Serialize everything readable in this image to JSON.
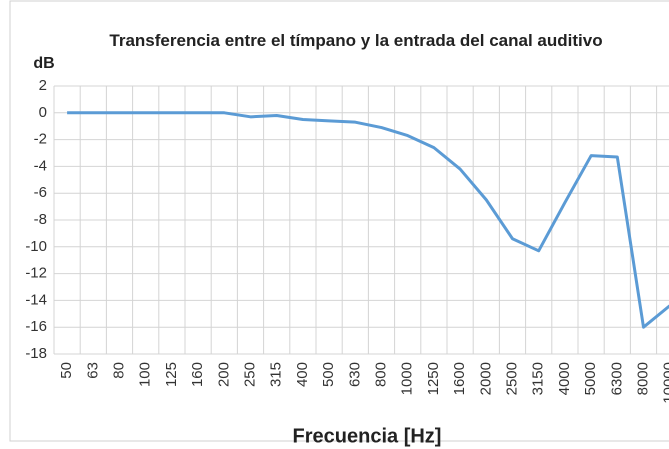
{
  "chart_data": {
    "type": "line",
    "title": "Transferencia entre el tímpano y la entrada del canal auditivo",
    "y_label": "dB",
    "x_label": "Frecuencia [Hz]",
    "categories": [
      "50",
      "63",
      "80",
      "100",
      "125",
      "160",
      "200",
      "250",
      "315",
      "400",
      "500",
      "630",
      "800",
      "1000",
      "1250",
      "1600",
      "2000",
      "2500",
      "3150",
      "4000",
      "5000",
      "6300",
      "8000",
      "10000"
    ],
    "values": [
      0,
      0,
      0,
      0,
      0,
      0,
      0,
      -0.3,
      -0.2,
      -0.5,
      -0.6,
      -0.7,
      -1.1,
      -1.7,
      -2.6,
      -4.2,
      -6.5,
      -9.4,
      -10.3,
      -6.7,
      -3.2,
      -3.3,
      -16,
      -14.4
    ],
    "color": "#5b9bd5",
    "ylim": [
      -18,
      2
    ],
    "yticks": [
      2,
      0,
      -2,
      -4,
      -6,
      -8,
      -10,
      -12,
      -14,
      -16,
      -18
    ],
    "grid": true
  }
}
